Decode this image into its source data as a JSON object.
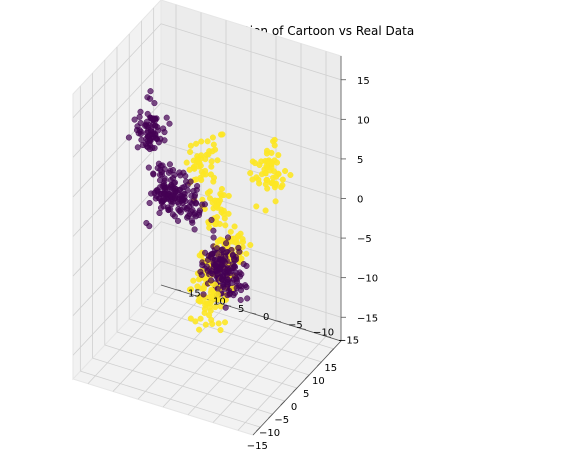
{
  "chart_data": {
    "type": "scatter",
    "projection": "3d",
    "title": "TSNE visualisation of Cartoon vs Real Data",
    "xlabel": "",
    "ylabel": "",
    "zlabel": "",
    "x_ticks": [
      "−15",
      "−10",
      "−5",
      "0",
      "5",
      "10",
      "15"
    ],
    "y_ticks": [
      "−15",
      "−10",
      "−5",
      "0",
      "5",
      "10",
      "15"
    ],
    "z_ticks": [
      "−15",
      "−10",
      "−5",
      "0",
      "5",
      "10",
      "15"
    ],
    "xlim": [
      -18,
      18
    ],
    "ylim": [
      -18,
      18
    ],
    "zlim": [
      -18,
      18
    ],
    "grid": true,
    "colors": {
      "real": "#440154",
      "cartoon": "#fde725",
      "pane": "#f2f2f2",
      "grid": "#d0d0d0"
    },
    "series": [
      {
        "color_key": "real",
        "clusters": [
          {
            "center": [
              -8,
              -8,
              -3
            ],
            "spread": 1.6,
            "count": 110
          },
          {
            "center": [
              2,
              12,
              8
            ],
            "spread": 1.4,
            "count": 80
          },
          {
            "center": [
              8,
              12,
              -2
            ],
            "spread": 1.6,
            "count": 110
          },
          {
            "center": [
              -4,
              2,
              3
            ],
            "spread": 1.3,
            "count": 50
          },
          {
            "center": [
              -2,
              -3,
              -5
            ],
            "spread": 1.5,
            "count": 70
          }
        ]
      },
      {
        "color_key": "cartoon",
        "clusters": [
          {
            "center": [
              -4,
              -14,
              10
            ],
            "spread": 1.6,
            "count": 60
          },
          {
            "center": [
              -12,
              -8,
              6
            ],
            "spread": 1.2,
            "count": 35
          },
          {
            "center": [
              -14,
              -12,
              2
            ],
            "spread": 1.1,
            "count": 30
          },
          {
            "center": [
              -9,
              -8,
              0
            ],
            "spread": 1.6,
            "count": 50
          },
          {
            "center": [
              -12,
              -6,
              -5
            ],
            "spread": 1.8,
            "count": 60
          },
          {
            "center": [
              -6,
              -4,
              -4
            ],
            "spread": 1.4,
            "count": 40
          },
          {
            "center": [
              -5,
              -2,
              9
            ],
            "spread": 1.5,
            "count": 50
          }
        ]
      }
    ]
  }
}
